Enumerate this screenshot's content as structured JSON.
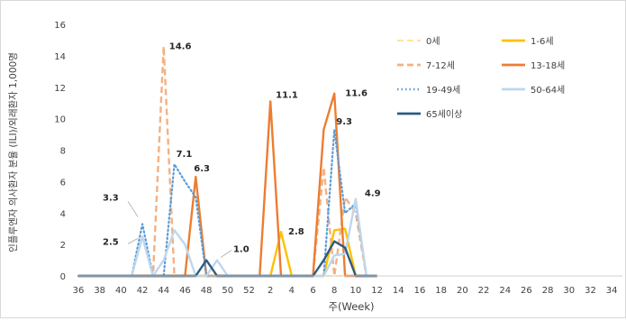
{
  "chart_data": {
    "type": "line",
    "xlabel": "주(Week)",
    "ylabel": "인플루엔자 의사환자 분율 (ILI)/외래환자 1,000명",
    "ylim": [
      0,
      16
    ],
    "yticks": [
      0,
      2,
      4,
      6,
      8,
      10,
      12,
      14,
      16
    ],
    "week_ticks": [
      "36",
      "38",
      "40",
      "42",
      "44",
      "46",
      "48",
      "50",
      "52",
      "2",
      "4",
      "6",
      "8",
      "10",
      "12",
      "14",
      "16",
      "18",
      "20",
      "22",
      "24",
      "26",
      "28",
      "30",
      "32",
      "34"
    ],
    "grid": false,
    "legend_position": "top-right",
    "series": [
      {
        "name": "0세",
        "color": "#ffe699",
        "dash": "dash",
        "width": 1.8,
        "x": [
          "36",
          "37",
          "38",
          "39",
          "40",
          "41",
          "42",
          "43",
          "44",
          "45",
          "46",
          "47",
          "48",
          "49",
          "50",
          "51",
          "52",
          "1",
          "2",
          "3",
          "4",
          "5",
          "6",
          "7",
          "8",
          "9",
          "10",
          "11",
          "12"
        ],
        "values": [
          0,
          0,
          0,
          0,
          0,
          0,
          0,
          0,
          0,
          0,
          0,
          0,
          0,
          0,
          0,
          0,
          0,
          0,
          0,
          0,
          0,
          0,
          0,
          0,
          0,
          0,
          0,
          0,
          0
        ]
      },
      {
        "name": "1-6세",
        "color": "#ffc000",
        "dash": "solid",
        "width": 2.4,
        "x": [
          "36",
          "37",
          "38",
          "39",
          "40",
          "41",
          "42",
          "43",
          "44",
          "45",
          "46",
          "47",
          "48",
          "49",
          "50",
          "51",
          "52",
          "1",
          "2",
          "3",
          "4",
          "5",
          "6",
          "7",
          "8",
          "9",
          "10",
          "11",
          "12"
        ],
        "values": [
          0,
          0,
          0,
          0,
          0,
          0,
          0,
          0,
          0,
          0,
          0,
          0,
          0,
          0,
          0,
          0,
          0,
          0,
          0,
          2.8,
          0,
          0,
          0,
          0,
          2.9,
          3.0,
          0,
          0,
          0
        ]
      },
      {
        "name": "7-12세",
        "color": "#f4b183",
        "dash": "dash",
        "width": 2.4,
        "x": [
          "36",
          "37",
          "38",
          "39",
          "40",
          "41",
          "42",
          "43",
          "44",
          "45",
          "46",
          "47",
          "48",
          "49",
          "50",
          "51",
          "52",
          "1",
          "2",
          "3",
          "4",
          "5",
          "6",
          "7",
          "8",
          "9",
          "10",
          "11",
          "12"
        ],
        "values": [
          0,
          0,
          0,
          0,
          0,
          0,
          0,
          0,
          14.6,
          0,
          0,
          0,
          0,
          0,
          0,
          0,
          0,
          0,
          0,
          0,
          0,
          0,
          0,
          6.9,
          0,
          5.0,
          4.0,
          0,
          0
        ]
      },
      {
        "name": "13-18세",
        "color": "#ed7d31",
        "dash": "solid",
        "width": 2.4,
        "x": [
          "36",
          "37",
          "38",
          "39",
          "40",
          "41",
          "42",
          "43",
          "44",
          "45",
          "46",
          "47",
          "48",
          "49",
          "50",
          "51",
          "52",
          "1",
          "2",
          "3",
          "4",
          "5",
          "6",
          "7",
          "8",
          "9",
          "10",
          "11",
          "12"
        ],
        "values": [
          0,
          0,
          0,
          0,
          0,
          0,
          0,
          0,
          0,
          0,
          0,
          6.3,
          0,
          0,
          0,
          0,
          0,
          0,
          11.1,
          0,
          0,
          0,
          0,
          9.3,
          11.6,
          0,
          0,
          0,
          0
        ]
      },
      {
        "name": "19-49세",
        "color": "#5b9bd5",
        "dash": "dot",
        "width": 2.2,
        "x": [
          "36",
          "37",
          "38",
          "39",
          "40",
          "41",
          "42",
          "43",
          "44",
          "45",
          "46",
          "47",
          "48",
          "49",
          "50",
          "51",
          "52",
          "1",
          "2",
          "3",
          "4",
          "5",
          "6",
          "7",
          "8",
          "9",
          "10",
          "11",
          "12"
        ],
        "values": [
          0,
          0,
          0,
          0,
          0,
          0,
          3.3,
          0,
          0,
          7.1,
          6.0,
          5.0,
          0,
          0,
          0,
          0,
          0,
          0,
          0,
          0,
          0,
          0,
          0,
          0,
          9.3,
          4.0,
          4.6,
          0,
          0
        ]
      },
      {
        "name": "50-64세",
        "color": "#bdd7ee",
        "dash": "solid",
        "width": 2.4,
        "x": [
          "36",
          "37",
          "38",
          "39",
          "40",
          "41",
          "42",
          "43",
          "44",
          "45",
          "46",
          "47",
          "48",
          "49",
          "50",
          "51",
          "52",
          "1",
          "2",
          "3",
          "4",
          "5",
          "6",
          "7",
          "8",
          "9",
          "10",
          "11",
          "12"
        ],
        "values": [
          0,
          0,
          0,
          0,
          0,
          0,
          2.5,
          0,
          1.0,
          2.9,
          2.0,
          0,
          0,
          1.0,
          0,
          0,
          0,
          0,
          0,
          0,
          0,
          0,
          0,
          0,
          1.3,
          1.4,
          4.9,
          0,
          0
        ]
      },
      {
        "name": "65세이상",
        "color": "#2e5b80",
        "dash": "solid",
        "width": 2.4,
        "x": [
          "36",
          "37",
          "38",
          "39",
          "40",
          "41",
          "42",
          "43",
          "44",
          "45",
          "46",
          "47",
          "48",
          "49",
          "50",
          "51",
          "52",
          "1",
          "2",
          "3",
          "4",
          "5",
          "6",
          "7",
          "8",
          "9",
          "10",
          "11",
          "12"
        ],
        "values": [
          0,
          0,
          0,
          0,
          0,
          0,
          0,
          0,
          0,
          0,
          0,
          0,
          1.0,
          0,
          0,
          0,
          0,
          0,
          0,
          0,
          0,
          0,
          0,
          1.0,
          2.2,
          1.8,
          0,
          0,
          0
        ]
      }
    ],
    "annotations": [
      {
        "text": "14.6",
        "x": "44",
        "y": 14.6
      },
      {
        "text": "7.1",
        "x": "45",
        "y": 7.1
      },
      {
        "text": "6.3",
        "x": "47",
        "y": 6.3
      },
      {
        "text": "3.3",
        "x": "42",
        "y": 3.3
      },
      {
        "text": "2.5",
        "x": "42",
        "y": 2.5
      },
      {
        "text": "1.0",
        "x": "49",
        "y": 1.0
      },
      {
        "text": "11.1",
        "x": "2",
        "y": 11.1
      },
      {
        "text": "2.8",
        "x": "3",
        "y": 2.8
      },
      {
        "text": "11.6",
        "x": "8",
        "y": 11.6
      },
      {
        "text": "9.3",
        "x": "8",
        "y": 9.3
      },
      {
        "text": "4.9",
        "x": "10",
        "y": 4.9
      }
    ]
  }
}
